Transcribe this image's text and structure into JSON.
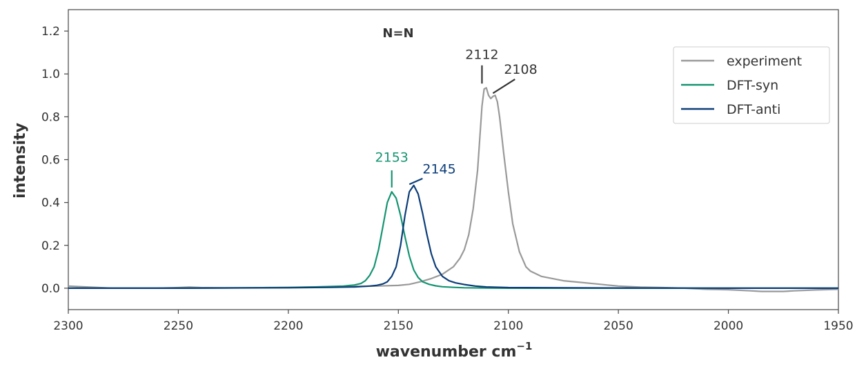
{
  "chart_data": {
    "type": "line",
    "title": "N=N",
    "xlabel": "wavenumber cm",
    "xlabel_sup": "−1",
    "ylabel": "intensity",
    "xlim": [
      2300,
      1950
    ],
    "ylim": [
      -0.1,
      1.3
    ],
    "x_reversed": true,
    "grid": false,
    "legend_position": "top-right",
    "xticks": [
      2300,
      2250,
      2200,
      2150,
      2100,
      2050,
      2000,
      1950
    ],
    "xtick_labels": [
      "2300",
      "2250",
      "2200",
      "2150",
      "2100",
      "2050",
      "2000",
      "1950"
    ],
    "yticks": [
      0.0,
      0.2,
      0.4,
      0.6,
      0.8,
      1.0,
      1.2
    ],
    "ytick_labels": [
      "0.0",
      "0.2",
      "0.4",
      "0.6",
      "0.8",
      "1.0",
      "1.2"
    ],
    "series": [
      {
        "name": "experiment",
        "color": "#999999",
        "x": [
          2300,
          2290,
          2280,
          2270,
          2260,
          2250,
          2245,
          2240,
          2230,
          2220,
          2210,
          2200,
          2190,
          2180,
          2170,
          2160,
          2150,
          2145,
          2140,
          2135,
          2130,
          2125,
          2122,
          2120,
          2118,
          2116,
          2114,
          2113,
          2112,
          2111,
          2110,
          2109,
          2108,
          2107,
          2106,
          2105,
          2104,
          2102,
          2100,
          2098,
          2095,
          2092,
          2090,
          2085,
          2080,
          2075,
          2070,
          2060,
          2055,
          2050,
          2040,
          2030,
          2020,
          2010,
          2000,
          1990,
          1985,
          1975,
          1970,
          1960,
          1950
        ],
        "y": [
          0.01,
          0.005,
          0.0,
          0.0,
          0.0,
          0.003,
          0.005,
          0.003,
          0.002,
          0.002,
          0.003,
          0.004,
          0.006,
          0.007,
          0.008,
          0.01,
          0.013,
          0.018,
          0.03,
          0.045,
          0.065,
          0.1,
          0.14,
          0.18,
          0.25,
          0.37,
          0.55,
          0.7,
          0.85,
          0.93,
          0.935,
          0.9,
          0.885,
          0.895,
          0.9,
          0.87,
          0.8,
          0.62,
          0.45,
          0.3,
          0.17,
          0.1,
          0.08,
          0.055,
          0.045,
          0.035,
          0.03,
          0.02,
          0.015,
          0.01,
          0.005,
          0.003,
          0.0,
          -0.005,
          -0.007,
          -0.012,
          -0.015,
          -0.015,
          -0.012,
          -0.008,
          -0.005
        ]
      },
      {
        "name": "DFT-syn",
        "color": "#149470",
        "x": [
          2300,
          2250,
          2200,
          2190,
          2180,
          2175,
          2170,
          2167,
          2165,
          2163,
          2161,
          2159,
          2157,
          2155,
          2153,
          2151,
          2149,
          2147,
          2145,
          2143,
          2141,
          2139,
          2136,
          2133,
          2130,
          2125,
          2120,
          2110,
          2100,
          2050,
          2000,
          1950
        ],
        "y": [
          0.0,
          0.0,
          0.003,
          0.005,
          0.008,
          0.01,
          0.015,
          0.022,
          0.035,
          0.06,
          0.1,
          0.18,
          0.29,
          0.4,
          0.45,
          0.42,
          0.34,
          0.24,
          0.15,
          0.085,
          0.05,
          0.03,
          0.018,
          0.011,
          0.007,
          0.004,
          0.002,
          0.001,
          0.0,
          0.0,
          0.0,
          0.0
        ]
      },
      {
        "name": "DFT-anti",
        "color": "#0b3d78",
        "x": [
          2300,
          2250,
          2200,
          2180,
          2170,
          2163,
          2160,
          2157,
          2155,
          2153,
          2151,
          2149,
          2147,
          2145,
          2143,
          2141,
          2139,
          2137,
          2135,
          2133,
          2130,
          2127,
          2124,
          2120,
          2115,
          2110,
          2100,
          2050,
          2000,
          1950
        ],
        "y": [
          0.0,
          0.0,
          0.002,
          0.004,
          0.006,
          0.01,
          0.013,
          0.02,
          0.03,
          0.055,
          0.1,
          0.2,
          0.34,
          0.45,
          0.48,
          0.44,
          0.35,
          0.25,
          0.16,
          0.1,
          0.055,
          0.035,
          0.025,
          0.017,
          0.01,
          0.006,
          0.003,
          0.001,
          0.0,
          0.0
        ]
      }
    ],
    "annotations": [
      {
        "text": "2112",
        "color": "#333333",
        "line_from": [
          2112,
          0.955
        ],
        "line_to": [
          2112,
          1.04
        ],
        "label_at": [
          2112,
          1.07
        ],
        "anchor": "middle"
      },
      {
        "text": "2108",
        "color": "#333333",
        "line_from": [
          2107,
          0.91
        ],
        "line_to": [
          2097,
          0.975
        ],
        "label_at": [
          2102,
          1.0
        ],
        "anchor": "start"
      },
      {
        "text": "2153",
        "color": "#149470",
        "line_from": [
          2153,
          0.47
        ],
        "line_to": [
          2153,
          0.55
        ],
        "label_at": [
          2153,
          0.59
        ],
        "anchor": "middle"
      },
      {
        "text": "2145",
        "color": "#0b3d78",
        "line_from": [
          2145,
          0.485
        ],
        "line_to": [
          2139,
          0.512
        ],
        "label_at": [
          2139,
          0.535
        ],
        "anchor": "start"
      }
    ]
  }
}
